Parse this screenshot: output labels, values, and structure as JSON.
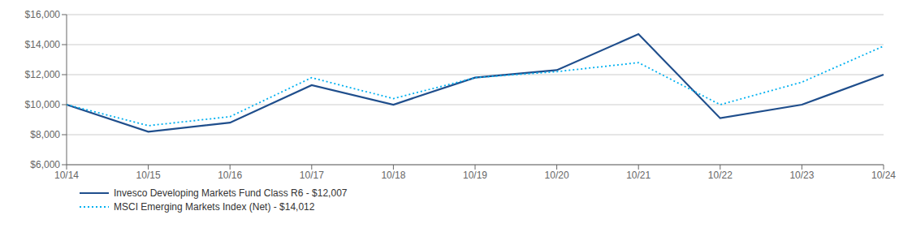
{
  "chart_data": {
    "type": "line",
    "categories": [
      "10/14",
      "10/15",
      "10/16",
      "10/17",
      "10/18",
      "10/19",
      "10/20",
      "10/21",
      "10/22",
      "10/23",
      "10/24"
    ],
    "series": [
      {
        "name": "Invesco Developing Markets Fund Class R6 - $12,007",
        "color": "#1f4e8c",
        "line_style": "solid",
        "values": [
          10000,
          8200,
          8800,
          11300,
          10000,
          11800,
          12300,
          14700,
          9100,
          10000,
          12000
        ]
      },
      {
        "name": "MSCI Emerging Markets Index (Net) - $14,012",
        "color": "#00b0f0",
        "line_style": "dotted",
        "values": [
          10000,
          8600,
          9200,
          11800,
          10400,
          11800,
          12200,
          12800,
          10000,
          11500,
          13900
        ]
      }
    ],
    "ylim": [
      6000,
      16000
    ],
    "yticks": [
      {
        "value": 6000,
        "label": "$6,000"
      },
      {
        "value": 8000,
        "label": "$8,000"
      },
      {
        "value": 10000,
        "label": "$10,000"
      },
      {
        "value": 12000,
        "label": "$12,000"
      },
      {
        "value": 14000,
        "label": "$14,000"
      },
      {
        "value": 16000,
        "label": "$16,000"
      }
    ],
    "grid": true,
    "legend": "bottom left"
  }
}
